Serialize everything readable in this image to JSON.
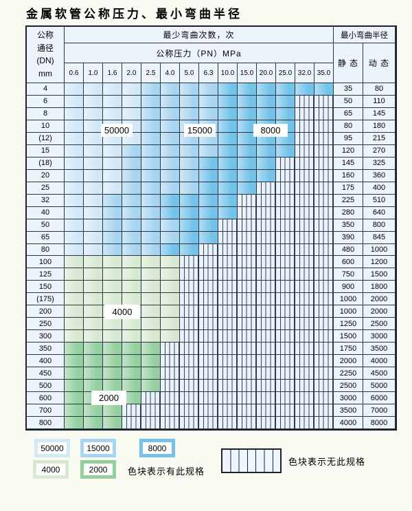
{
  "title": "金属软管公称压力、最小弯曲半径",
  "header": {
    "dn_lines": [
      "公称",
      "通径",
      "(DN)",
      "mm"
    ],
    "bend_cycles_label": "最少弯曲次数，次",
    "pressure_label": "公称压力（PN）MPa",
    "min_radius_label": "最小弯曲半径",
    "static_label": "静 态",
    "dynamic_label": "动 态",
    "pressure_cols": [
      "0.6",
      "1.0",
      "1.6",
      "2.0",
      "2.5",
      "4.0",
      "5.0",
      "6.3",
      "10.0",
      "15.0",
      "20.0",
      "25.0",
      "32.0",
      "35.0"
    ]
  },
  "band_legend_map": {
    "L": "cycles 50000",
    "M": "cycles 15000",
    "D": "cycles 8000",
    "g": "cycles 4000",
    "G": "cycles 2000",
    ".": "no specification (hatched)"
  },
  "colors": {
    "blue_50000": "#d3e8f7",
    "blue_15000": "#a7d5f1",
    "blue_8000": "#72c2ea",
    "green_4000": "#d7e9d1",
    "green_2000": "#94cfa0",
    "hatch_bg": "#eaf3fb",
    "header_bg": "#ecf3fa",
    "grid_line": "#2a3540"
  },
  "rows": [
    {
      "dn": "4",
      "pattern": "LLLLMMMMDDDDDD",
      "static": "35",
      "dynamic": "80"
    },
    {
      "dn": "6",
      "pattern": "LLLLMMMMDDDD..",
      "static": "50",
      "dynamic": "110"
    },
    {
      "dn": "8",
      "pattern": "LLLLMMMMDDDD..",
      "static": "65",
      "dynamic": "145"
    },
    {
      "dn": "10",
      "pattern": "LLLLMMMMDDDD..",
      "static": "80",
      "dynamic": "180"
    },
    {
      "dn": "(12)",
      "pattern": "LLLLMMMMDDDD..",
      "static": "95",
      "dynamic": "215"
    },
    {
      "dn": "15",
      "pattern": "LLLMMMMMDDDD..",
      "static": "120",
      "dynamic": "270"
    },
    {
      "dn": "(18)",
      "pattern": "LLLMMMMDDDD...",
      "static": "145",
      "dynamic": "325"
    },
    {
      "dn": "20",
      "pattern": "LLLMMMMDDDD...",
      "static": "160",
      "dynamic": "360"
    },
    {
      "dn": "25",
      "pattern": "LLLMMMMDDD....",
      "static": "175",
      "dynamic": "400"
    },
    {
      "dn": "32",
      "pattern": "LLMMMDDDD.....",
      "static": "225",
      "dynamic": "510"
    },
    {
      "dn": "40",
      "pattern": "LLMMMDDDD.....",
      "static": "280",
      "dynamic": "640"
    },
    {
      "dn": "50",
      "pattern": "LLMMMMDD......",
      "static": "350",
      "dynamic": "800"
    },
    {
      "dn": "65",
      "pattern": "LLMMMMDD......",
      "static": "390",
      "dynamic": "845"
    },
    {
      "dn": "80",
      "pattern": "LLMMMDD.......",
      "static": "480",
      "dynamic": "1000"
    },
    {
      "dn": "100",
      "pattern": "gggggg........",
      "static": "600",
      "dynamic": "1200"
    },
    {
      "dn": "125",
      "pattern": "gggggg........",
      "static": "750",
      "dynamic": "1500"
    },
    {
      "dn": "150",
      "pattern": "gggggg........",
      "static": "900",
      "dynamic": "1800"
    },
    {
      "dn": "(175)",
      "pattern": "gggggg........",
      "static": "1000",
      "dynamic": "2000"
    },
    {
      "dn": "200",
      "pattern": "gggggg........",
      "static": "1000",
      "dynamic": "2000"
    },
    {
      "dn": "250",
      "pattern": "gggggg........",
      "static": "1250",
      "dynamic": "2500"
    },
    {
      "dn": "300",
      "pattern": "gggggg........",
      "static": "1500",
      "dynamic": "3000"
    },
    {
      "dn": "350",
      "pattern": "GGGGG.........",
      "static": "1750",
      "dynamic": "3500"
    },
    {
      "dn": "400",
      "pattern": "GGGGG.........",
      "static": "2000",
      "dynamic": "4000"
    },
    {
      "dn": "450",
      "pattern": "GGGGG.........",
      "static": "2250",
      "dynamic": "4500"
    },
    {
      "dn": "500",
      "pattern": "GGGGG.........",
      "static": "2500",
      "dynamic": "5000"
    },
    {
      "dn": "600",
      "pattern": "GGGG..........",
      "static": "3000",
      "dynamic": "6000"
    },
    {
      "dn": "700",
      "pattern": "GGG...........",
      "static": "3500",
      "dynamic": "7000"
    },
    {
      "dn": "800",
      "pattern": "GGG...........",
      "static": "4000",
      "dynamic": "8000"
    }
  ],
  "overlays": [
    {
      "label": "50000"
    },
    {
      "label": "15000"
    },
    {
      "label": "8000"
    },
    {
      "label": "4000"
    },
    {
      "label": "2000"
    }
  ],
  "legend": {
    "swatches": [
      {
        "value": "50000",
        "color_key": "blue_50000"
      },
      {
        "value": "15000",
        "color_key": "blue_15000"
      },
      {
        "value": "8000",
        "color_key": "blue_8000"
      },
      {
        "value": "4000",
        "color_key": "green_4000"
      },
      {
        "value": "2000",
        "color_key": "green_2000"
      }
    ],
    "has_spec_text": "色块表示有此规格",
    "no_spec_text": "色块表示无此规格"
  }
}
